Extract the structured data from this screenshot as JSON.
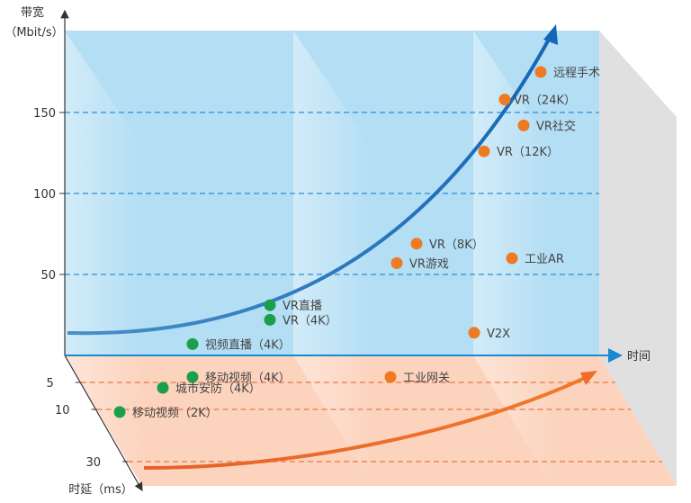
{
  "chart_data": {
    "type": "scatter",
    "y_axis": {
      "title_line1": "带宽",
      "title_line2": "（Mbit/s）",
      "ticks": [
        50,
        100,
        150
      ],
      "ylim": [
        0,
        200
      ]
    },
    "x_axis": {
      "title": "时间"
    },
    "latency_axis": {
      "title": "时延（ms）",
      "ticks": [
        5,
        10,
        30
      ]
    },
    "series": [
      {
        "color": "#1aa04a",
        "points": [
          {
            "label": "VR直播",
            "bandwidth": 31
          },
          {
            "label": "VR（4K）",
            "bandwidth": 22
          },
          {
            "label": "视频直播（4K）",
            "bandwidth": 7
          },
          {
            "label": "移动视频（4K）",
            "latency": 4
          },
          {
            "label": "城市安防（4K）",
            "latency": 6
          },
          {
            "label": "移动视频（2K）",
            "latency": 11
          }
        ]
      },
      {
        "color": "#ee7a22",
        "points": [
          {
            "label": "远程手术",
            "bandwidth": 175
          },
          {
            "label": "VR（24K）",
            "bandwidth": 158
          },
          {
            "label": "VR社交",
            "bandwidth": 142
          },
          {
            "label": "VR（12K）",
            "bandwidth": 126
          },
          {
            "label": "VR（8K）",
            "bandwidth": 69
          },
          {
            "label": "VR游戏",
            "bandwidth": 57
          },
          {
            "label": "工业AR",
            "bandwidth": 60
          },
          {
            "label": "V2X",
            "bandwidth": 14
          },
          {
            "label": "工业网关",
            "latency": 4
          }
        ]
      }
    ],
    "colors": {
      "bandwidth_panel": "#b3def4",
      "latency_panel": "#fcd4be",
      "side_panel": "#e0e0e0",
      "axis_blue": "#1b88cf",
      "trend_blue": "#1467b6",
      "trend_orange": "#ef6c2a"
    }
  }
}
